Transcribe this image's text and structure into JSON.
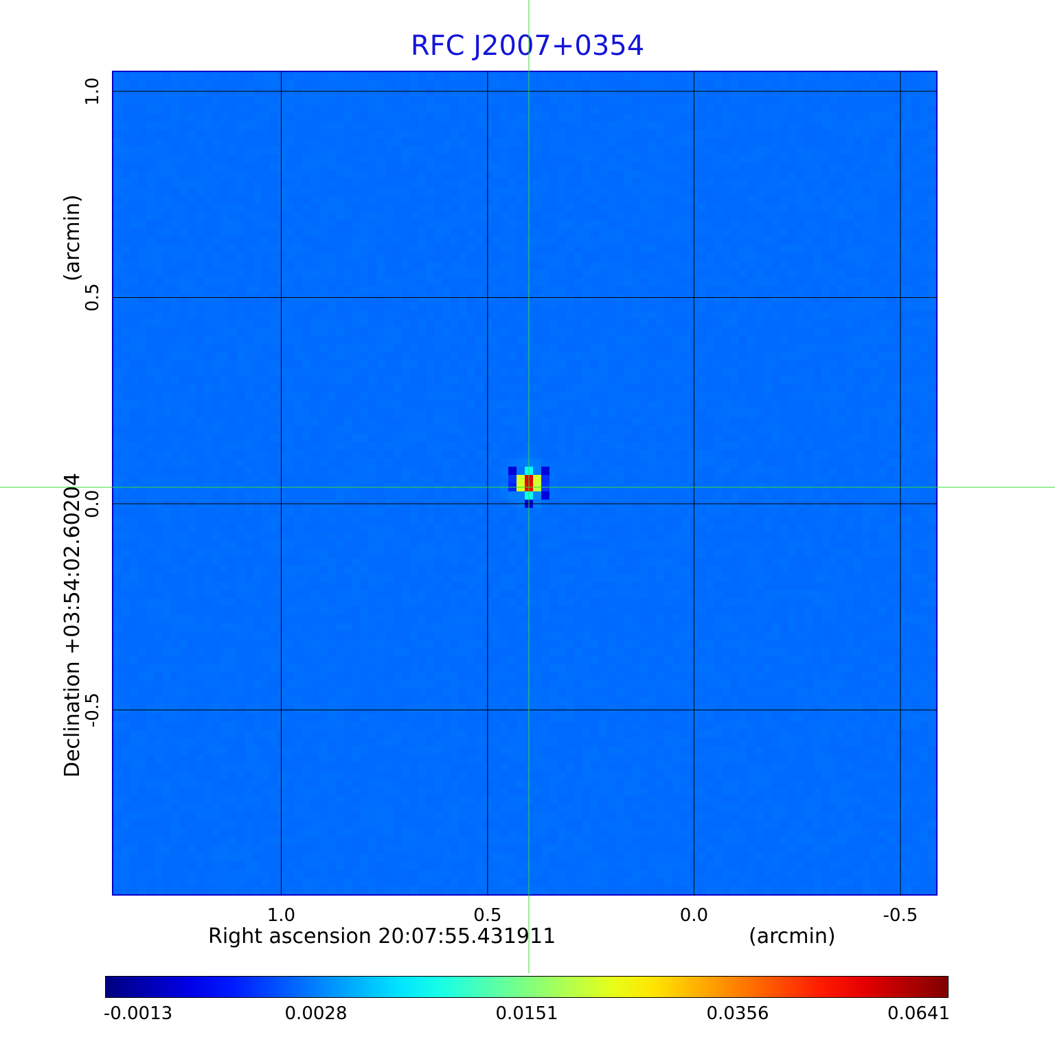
{
  "chart_data": {
    "type": "heatmap",
    "title": "RFC J2007+0354",
    "xlabel": "Right ascension  20:07:55.431911",
    "xunit": "(arcmin)",
    "ylabel": "Declination  +03:54:02.60204",
    "yunit": "(arcmin)",
    "x_ticks": [
      "1.0",
      "0.5",
      "0.0",
      "-0.5"
    ],
    "y_ticks": [
      "1.0",
      "0.5",
      "0.0",
      "-0.5"
    ],
    "x_range": [
      1.41,
      -0.59
    ],
    "y_range": [
      -0.95,
      1.05
    ],
    "x_tick_values": [
      1.0,
      0.5,
      0.0,
      -0.5
    ],
    "y_tick_values": [
      1.0,
      0.5,
      0.0,
      -0.5
    ],
    "grid": true,
    "crosshair": {
      "x": 0.4,
      "y": 0.04
    },
    "source": {
      "x": 0.4,
      "y": 0.05,
      "peak": 0.0641
    },
    "colorbar": {
      "colormap": "jet",
      "tick_labels": [
        "-0.0013",
        "0.0028",
        "0.0151",
        "0.0356",
        "0.0641"
      ],
      "min": -0.0013,
      "max": 0.0641
    },
    "colors": {
      "title": "#1414d8",
      "crosshair": "#30e030",
      "grid": "#000000",
      "frame": "#0000c8"
    }
  }
}
